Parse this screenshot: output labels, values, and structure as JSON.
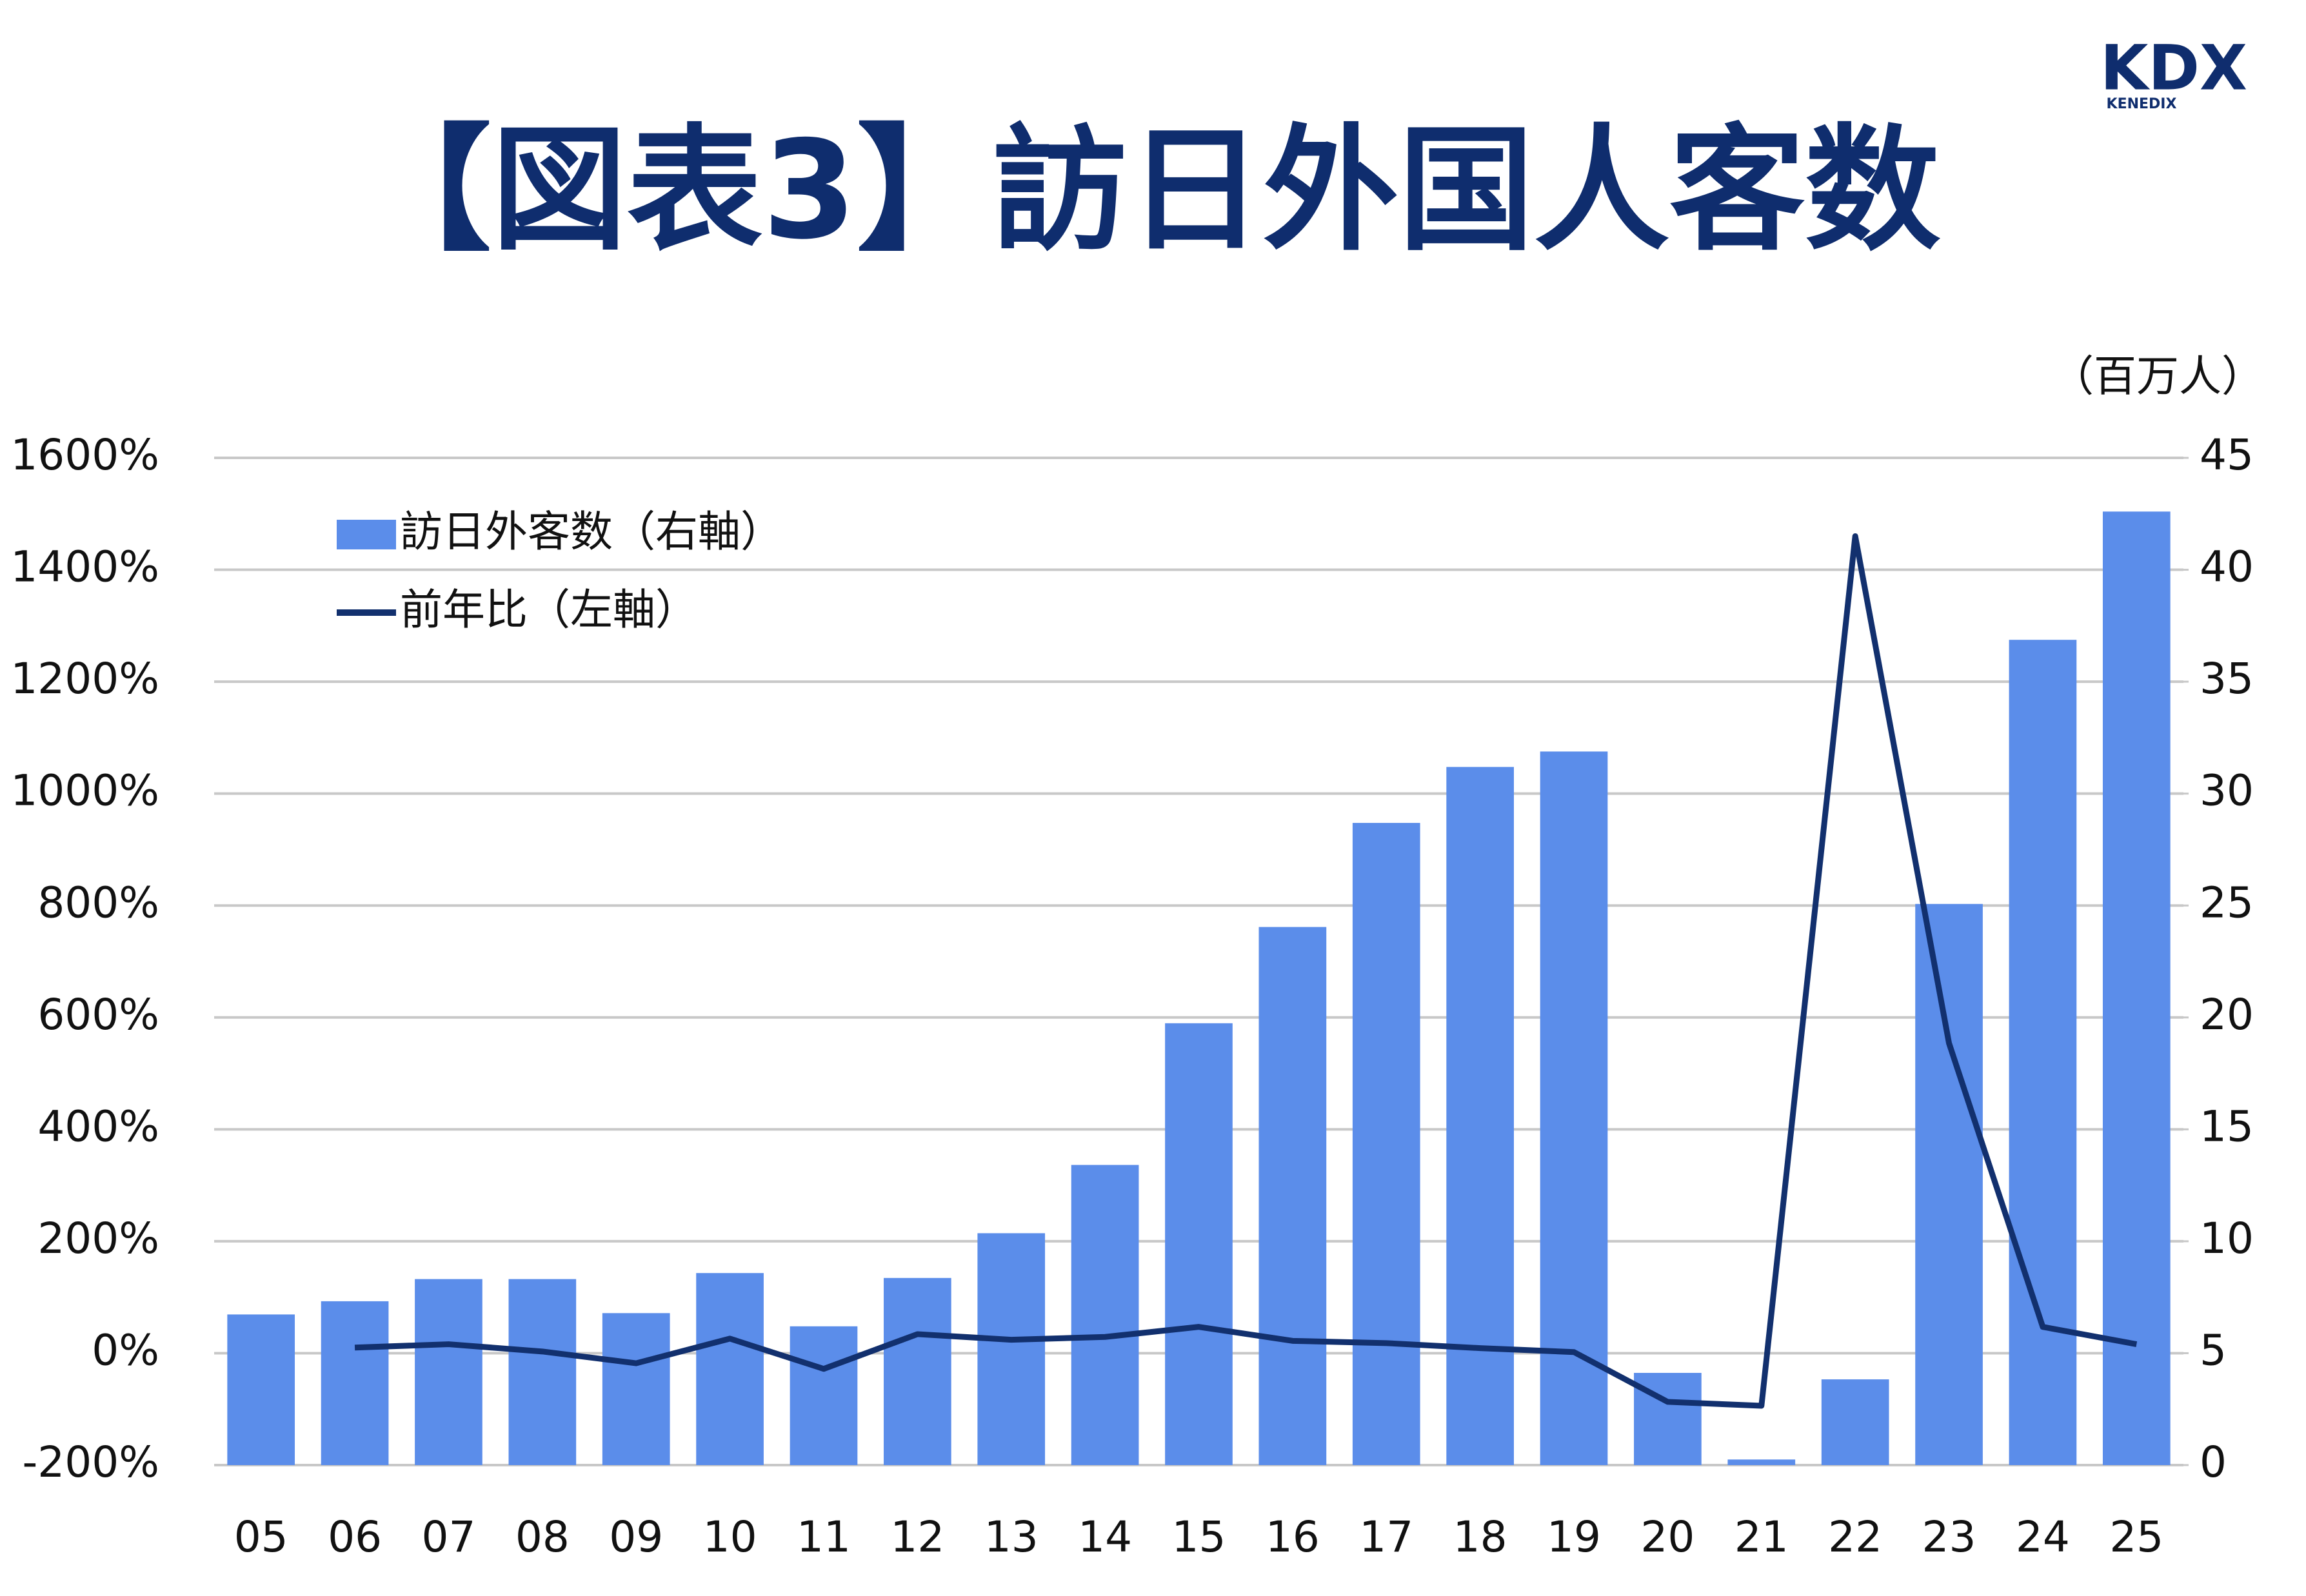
{
  "chart_data": {
    "type": "bar_line",
    "title": "【図表3】訪日外国人客数",
    "logo_text": "KDX",
    "logo_subtext": "KENEDIX",
    "y2_label": "（百万人）",
    "categories": [
      "05",
      "06",
      "07",
      "08",
      "09",
      "10",
      "11",
      "12",
      "13",
      "14",
      "15",
      "16",
      "17",
      "18",
      "19",
      "20",
      "21",
      "22",
      "23",
      "24",
      "25"
    ],
    "series": [
      {
        "name": "訪日外客数（右軸）",
        "type": "bar",
        "axis": "y2",
        "color": "#5b8dea",
        "values": [
          6.73,
          7.32,
          8.31,
          8.31,
          6.79,
          8.58,
          6.2,
          8.36,
          10.36,
          13.41,
          19.74,
          24.04,
          28.69,
          31.19,
          31.88,
          4.12,
          0.25,
          3.83,
          25.07,
          36.87,
          42.6
        ]
      },
      {
        "name": "前年比（左軸）",
        "type": "line",
        "axis": "y",
        "color": "#12306e",
        "values": [
          null,
          10,
          16,
          3,
          -18,
          26,
          -28,
          34,
          24,
          29,
          47,
          22,
          18,
          9,
          2,
          -87,
          -94,
          1460,
          554,
          47,
          16
        ]
      }
    ],
    "ylim": [
      -200,
      1600
    ],
    "yticks": [
      {
        "value": -200,
        "label": "-200%"
      },
      {
        "value": 0,
        "label": "0%"
      },
      {
        "value": 200,
        "label": "200%"
      },
      {
        "value": 400,
        "label": "400%"
      },
      {
        "value": 600,
        "label": "600%"
      },
      {
        "value": 800,
        "label": "800%"
      },
      {
        "value": 1000,
        "label": "1000%"
      },
      {
        "value": 1200,
        "label": "1200%"
      },
      {
        "value": 1400,
        "label": "1400%"
      },
      {
        "value": 1600,
        "label": "1600%"
      }
    ],
    "y2lim": [
      0,
      45
    ],
    "y2ticks": [
      0,
      5,
      10,
      15,
      20,
      25,
      30,
      35,
      40,
      45
    ],
    "grid": true
  }
}
